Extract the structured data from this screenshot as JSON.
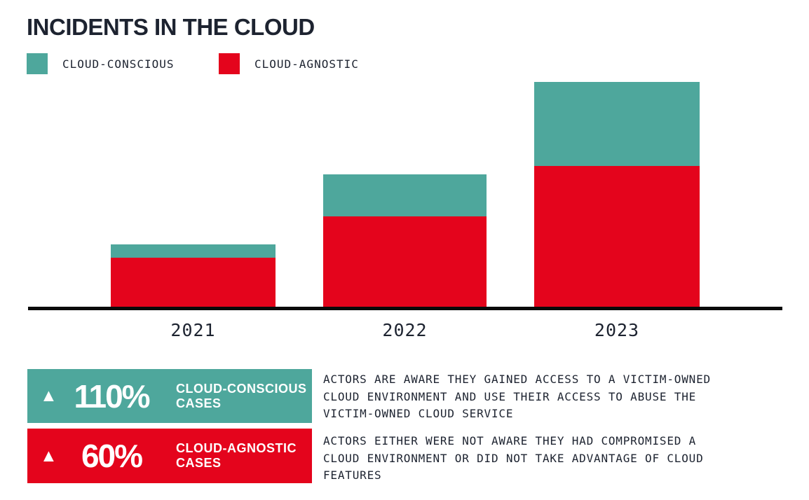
{
  "title": "INCIDENTS IN THE CLOUD",
  "colors": {
    "cloud_conscious": "#4EA79C",
    "cloud_agnostic": "#E4041C",
    "text_dark": "#1D2330",
    "axis": "#0A0A0A",
    "background": "#FFFFFF",
    "callout_text": "#FFFFFF"
  },
  "legend": {
    "items": [
      {
        "label": "CLOUD-CONSCIOUS",
        "color": "#4EA79C"
      },
      {
        "label": "CLOUD-AGNOSTIC",
        "color": "#E4041C"
      }
    ]
  },
  "chart_data": {
    "type": "bar",
    "stacked": true,
    "title": "INCIDENTS IN THE CLOUD",
    "categories": [
      "2021",
      "2022",
      "2023"
    ],
    "series": [
      {
        "name": "CLOUD-CONSCIOUS",
        "color": "#4EA79C",
        "values": [
          19,
          60,
          120
        ]
      },
      {
        "name": "CLOUD-AGNOSTIC",
        "color": "#E4041C",
        "values": [
          70,
          129,
          201
        ]
      }
    ],
    "value_units": "relative bar height in px (chart shows no y-axis or value labels)",
    "xlabel": "",
    "ylabel": "",
    "ylim": [
      0,
      330
    ],
    "grid": false,
    "legend_position": "top-left",
    "annotations": [
      "CLOUD-CONSCIOUS CASES up 110%",
      "CLOUD-AGNOSTIC CASES up 60%"
    ]
  },
  "callouts": [
    {
      "direction_icon": "▲",
      "percent": "110%",
      "label": "CLOUD-CONSCIOUS\nCASES",
      "description": "ACTORS ARE AWARE THEY GAINED ACCESS TO A VICTIM-OWNED\nCLOUD ENVIRONMENT AND USE THEIR ACCESS TO ABUSE THE\nVICTIM-OWNED CLOUD SERVICE",
      "color": "#4EA79C"
    },
    {
      "direction_icon": "▲",
      "percent": "60%",
      "label": "CLOUD-AGNOSTIC\nCASES",
      "description": "ACTORS EITHER WERE NOT AWARE THEY HAD COMPROMISED A\nCLOUD ENVIRONMENT OR DID NOT TAKE ADVANTAGE OF CLOUD\nFEATURES",
      "color": "#E4041C"
    }
  ]
}
